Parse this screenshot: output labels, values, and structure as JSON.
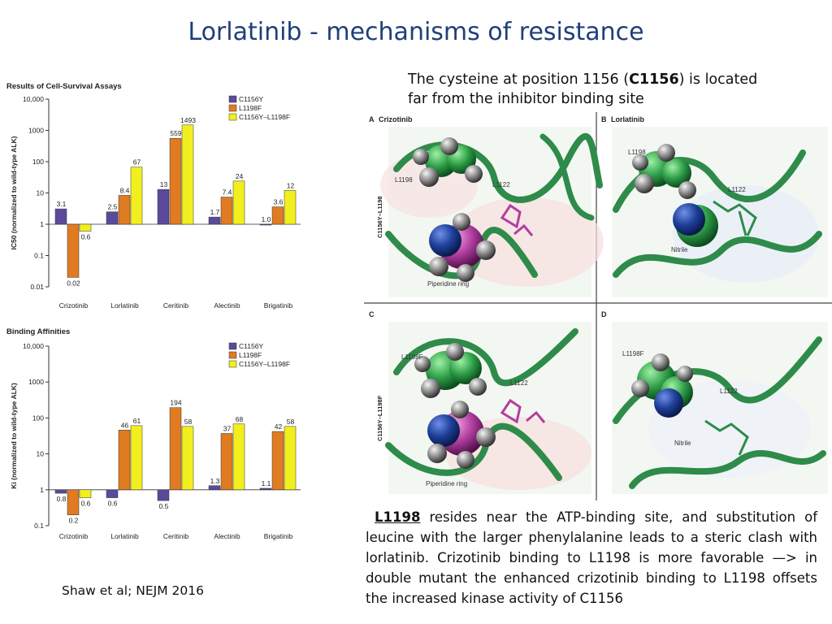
{
  "title": "Lorlatinib - mechanisms of resistance",
  "note_top": {
    "before": "The cysteine at position 1156 (",
    "bold": "C1156",
    "after": ") is located far from the inhibitor binding site"
  },
  "note_bottom": {
    "lead": "L1198",
    "rest": " resides near the ATP-binding site, and substitution of leucine with the larger phenylalanine leads to a steric clash with lorlatinib. Crizotinib binding to L1198 is more favorable —> in double mutant the enhanced crizotinib binding to L1198 offsets the increased kinase activity of C1156"
  },
  "citation": "Shaw et al; NEJM 2016",
  "colors": {
    "C1156Y": "#5b4a9b",
    "L1198F": "#e07b22",
    "C1156Y–L1198F": "#f2ef1e",
    "title": "#1f3f79"
  },
  "structures": {
    "panels": [
      {
        "letter": "A",
        "drug": "Crizotinib",
        "side": "C1156Y–L1198",
        "labels": [
          "L1198",
          "L1122",
          "Piperidine ring"
        ]
      },
      {
        "letter": "B",
        "drug": "Lorlatinib",
        "side": "",
        "labels": [
          "L1198",
          "L1122",
          "Nitrile"
        ]
      },
      {
        "letter": "C",
        "drug": "",
        "side": "C1156Y–L1198F",
        "labels": [
          "L1198F",
          "L1122",
          "Piperidine ring"
        ]
      },
      {
        "letter": "D",
        "drug": "",
        "side": "",
        "labels": [
          "L1198F",
          "L1122",
          "Nitrile"
        ]
      }
    ]
  },
  "chart_data": [
    {
      "type": "bar",
      "title": "Results of Cell-Survival Assays",
      "ylabel": "IC50 (normalized to wild-type ALK)",
      "yscale": "log",
      "ylim": [
        0.01,
        10000
      ],
      "yticks": [
        "0.01",
        "0.1",
        "1",
        "10",
        "100",
        "1000",
        "10,000"
      ],
      "legend": "top-right",
      "categories": [
        "Crizotinib",
        "Lorlatinib",
        "Ceritinib",
        "Alectinib",
        "Brigatinib"
      ],
      "series": [
        {
          "name": "C1156Y",
          "values": [
            3.1,
            2.5,
            13,
            1.7,
            1.0
          ],
          "labels": [
            "3.1",
            "2.5",
            "13",
            "1.7",
            "1.0"
          ]
        },
        {
          "name": "L1198F",
          "values": [
            0.02,
            8.4,
            559,
            7.4,
            3.6
          ],
          "labels": [
            "0.02",
            "8.4",
            "559",
            "7.4",
            "3.6"
          ]
        },
        {
          "name": "C1156Y–L1198F",
          "values": [
            0.6,
            67,
            1493,
            24,
            12
          ],
          "labels": [
            "0.6",
            "67",
            "1493",
            "24",
            "12"
          ]
        }
      ]
    },
    {
      "type": "bar",
      "title": "Binding Affinities",
      "ylabel": "Ki (normalized to wild-type ALK)",
      "yscale": "log",
      "ylim": [
        0.1,
        10000
      ],
      "yticks": [
        "0.1",
        "1",
        "10",
        "100",
        "1000",
        "10,000"
      ],
      "legend": "top-right",
      "categories": [
        "Crizotinib",
        "Lorlatinib",
        "Ceritinib",
        "Alectinib",
        "Brigatinib"
      ],
      "series": [
        {
          "name": "C1156Y",
          "values": [
            0.8,
            0.6,
            0.5,
            1.3,
            1.1
          ],
          "labels": [
            "0.8",
            "0.6",
            "0.5",
            "1.3",
            "1.1"
          ]
        },
        {
          "name": "L1198F",
          "values": [
            0.2,
            46,
            194,
            37,
            42
          ],
          "labels": [
            "0.2",
            "46",
            "194",
            "37",
            "42"
          ]
        },
        {
          "name": "C1156Y–L1198F",
          "values": [
            0.6,
            61,
            58,
            68,
            58
          ],
          "labels": [
            "0.6",
            "61",
            "58",
            "68",
            "58"
          ]
        }
      ]
    }
  ]
}
